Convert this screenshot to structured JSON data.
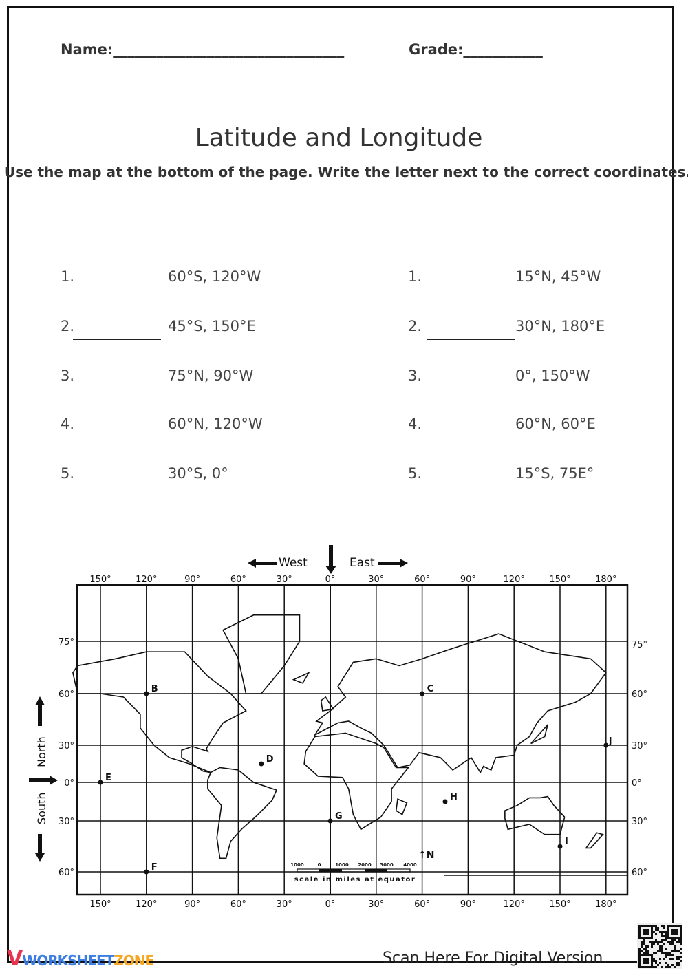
{
  "header": {
    "name_label": "Name:________________________________",
    "grade_label": "Grade:___________"
  },
  "title": "Latitude and Longitude",
  "instructions": "Use the map at the bottom of the page. Write the letter next to the correct coordinates.",
  "left_questions": [
    {
      "num": "1.",
      "coords": "60°S, 120°W"
    },
    {
      "num": "2.",
      "coords": "45°S, 150°E"
    },
    {
      "num": "3.",
      "coords": "75°N, 90°W"
    },
    {
      "num": "4.",
      "coords": "60°N, 120°W"
    },
    {
      "num": "5.",
      "coords": "30°S, 0°"
    }
  ],
  "right_questions": [
    {
      "num": "1.",
      "coords": "15°N, 45°W"
    },
    {
      "num": "2.",
      "coords": "30°N, 180°E"
    },
    {
      "num": "3.",
      "coords": "0°, 150°W"
    },
    {
      "num": "4.",
      "coords": "60°N, 60°E"
    },
    {
      "num": "5.",
      "coords": "15°S, 75E°"
    }
  ],
  "map": {
    "west_label": "West",
    "east_label": "East",
    "north_label": "North",
    "south_label": "South",
    "lon_labels": [
      "150°",
      "120°",
      "90°",
      "60°",
      "30°",
      "0°",
      "30°",
      "60°",
      "90°",
      "120°",
      "150°",
      "180°"
    ],
    "lat_left_labels": [
      "75°",
      "60°",
      "30°",
      "0°",
      "30°",
      "60°"
    ],
    "lat_right_labels": [
      "75°",
      "60°",
      "30°",
      "0°",
      "30°",
      "60°"
    ],
    "points": [
      {
        "letter": "B",
        "lon": -120,
        "lat": 60
      },
      {
        "letter": "C",
        "lon": 60,
        "lat": 60
      },
      {
        "letter": "D",
        "lon": -45,
        "lat": 15
      },
      {
        "letter": "E",
        "lon": -150,
        "lat": 0
      },
      {
        "letter": "F",
        "lon": -120,
        "lat": -60
      },
      {
        "letter": "G",
        "lon": 0,
        "lat": -30
      },
      {
        "letter": "H",
        "lon": 75,
        "lat": -15
      },
      {
        "letter": "I",
        "lon": 150,
        "lat": -45
      },
      {
        "letter": "J",
        "lon": 180,
        "lat": 30
      }
    ],
    "scale_numbers": [
      "1000",
      "0",
      "1000",
      "2000",
      "3000",
      "4000"
    ],
    "scale_caption": "scale in miles at equator",
    "north_arrow": "↑N"
  },
  "footer": {
    "logo_a": "WORKSHEET",
    "logo_b": "ZONE",
    "scan_text": "Scan Here For Digital Version."
  },
  "colors": {
    "logo_blue": "#3b7de0",
    "logo_orange": "#f5a623",
    "logo_red": "#e8344e"
  }
}
